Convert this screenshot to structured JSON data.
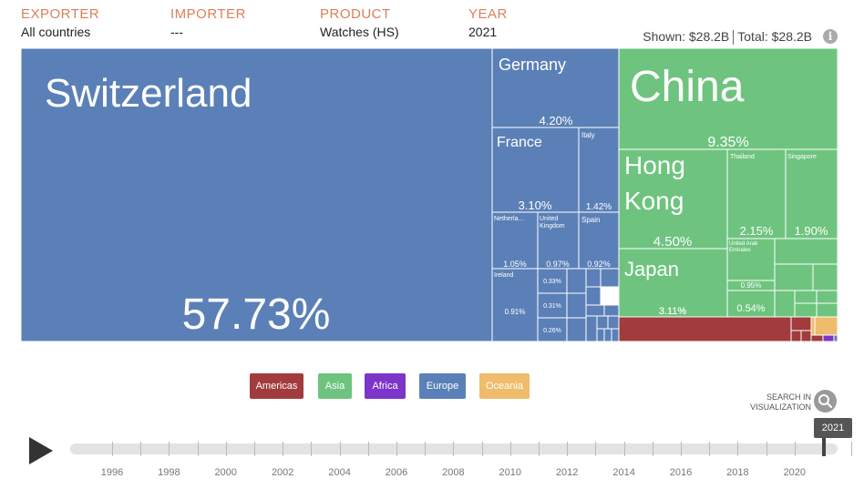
{
  "header": {
    "exporter_label": "EXPORTER",
    "exporter_value": "All countries",
    "importer_label": "IMPORTER",
    "importer_value": "---",
    "product_label": "PRODUCT",
    "product_value": "Watches (HS)",
    "year_label": "YEAR",
    "year_value": "2021"
  },
  "summary": {
    "shown_label": "Shown:",
    "shown_value": "$28.2B",
    "total_label": "Total:",
    "total_value": "$28.2B",
    "info_icon": "info-icon"
  },
  "colors": {
    "Americas": "#a23c3c",
    "Asia": "#6ec47f",
    "Africa": "#7d35c9",
    "Europe": "#5b80b7",
    "Oceania": "#efbc6b"
  },
  "chart_data": {
    "type": "treemap",
    "unit": "% of total",
    "items": [
      {
        "name": "Switzerland",
        "region": "Europe",
        "value": 57.73
      },
      {
        "name": "China",
        "region": "Asia",
        "value": 9.35
      },
      {
        "name": "Hong Kong",
        "region": "Asia",
        "value": 4.5
      },
      {
        "name": "Germany",
        "region": "Europe",
        "value": 4.2
      },
      {
        "name": "Japan",
        "region": "Asia",
        "value": 3.11
      },
      {
        "name": "France",
        "region": "Europe",
        "value": 3.1
      },
      {
        "name": "Thailand",
        "region": "Asia",
        "value": 2.15
      },
      {
        "name": "Singapore",
        "region": "Asia",
        "value": 1.9
      },
      {
        "name": "Italy",
        "region": "Europe",
        "value": 1.42
      },
      {
        "name": "Netherla...",
        "region": "Europe",
        "value": 1.05
      },
      {
        "name": "United Kingdom",
        "region": "Europe",
        "value": 0.97
      },
      {
        "name": "United Arab Emirates",
        "region": "Asia",
        "value": 0.95
      },
      {
        "name": "Spain",
        "region": "Europe",
        "value": 0.92
      },
      {
        "name": "Ireland",
        "region": "Europe",
        "value": 0.91
      },
      {
        "name": "",
        "region": "Asia",
        "value": 0.54
      },
      {
        "name": "",
        "region": "Europe",
        "value": 0.33
      },
      {
        "name": "",
        "region": "Europe",
        "value": 0.31
      },
      {
        "name": "",
        "region": "Europe",
        "value": 0.26
      }
    ]
  },
  "legend": [
    {
      "label": "Americas",
      "region": "Americas"
    },
    {
      "label": "Asia",
      "region": "Asia"
    },
    {
      "label": "Africa",
      "region": "Africa"
    },
    {
      "label": "Europe",
      "region": "Europe"
    },
    {
      "label": "Oceania",
      "region": "Oceania"
    }
  ],
  "search": {
    "label_line1": "SEARCH IN",
    "label_line2": "VISUALIZATION",
    "icon": "search-icon"
  },
  "timeline": {
    "play_icon": "play-icon",
    "selected_year": "2021",
    "year_labels": [
      "1996",
      "1998",
      "2000",
      "2002",
      "2004",
      "2006",
      "2008",
      "2010",
      "2012",
      "2014",
      "2016",
      "2018",
      "2020"
    ]
  }
}
